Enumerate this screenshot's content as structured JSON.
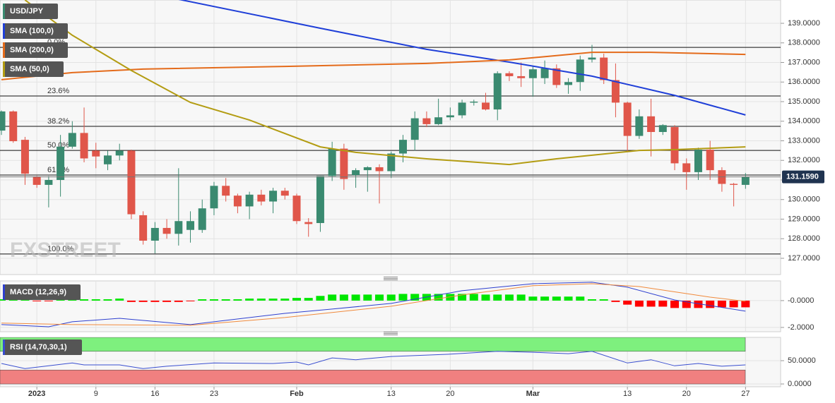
{
  "chart_data": [
    {
      "type": "candlestick",
      "title": "USD/JPY",
      "up_color": "#3a8a70",
      "down_color": "#e0564a",
      "open": [
        133.52,
        134.5,
        133.05,
        131.18,
        130.75,
        131.0,
        132.7,
        133.4,
        132.5,
        131.8,
        132.25,
        132.5,
        129.2,
        127.9,
        128.55,
        128.25,
        128.45,
        128.45,
        129.55,
        130.7,
        130.2,
        129.65,
        130.25,
        129.9,
        130.45,
        130.2,
        128.85,
        128.8,
        131.2,
        132.6,
        131.25,
        131.5,
        131.65,
        131.45,
        132.35,
        133.05,
        134.15,
        133.85,
        134.2,
        134.3,
        134.95,
        134.95,
        134.6,
        136.45,
        136.3,
        136.2,
        136.2,
        136.7,
        135.85,
        136.0,
        137.15,
        137.25,
        136.1,
        134.95,
        133.25,
        134.25,
        133.45,
        133.7,
        131.85,
        131.4,
        132.55,
        131.5,
        130.8,
        130.75
      ],
      "high": [
        134.55,
        134.55,
        133.2,
        131.2,
        131.2,
        133.3,
        134.0,
        134.7,
        132.9,
        132.5,
        132.85,
        132.55,
        129.4,
        128.85,
        129.0,
        131.6,
        129.4,
        130.0,
        130.9,
        131.1,
        130.3,
        130.4,
        130.5,
        130.6,
        130.6,
        130.3,
        129.05,
        131.2,
        132.95,
        132.85,
        131.6,
        131.7,
        131.8,
        132.45,
        133.3,
        134.5,
        134.5,
        135.15,
        134.7,
        135.1,
        135.1,
        135.45,
        136.55,
        136.55,
        137.0,
        136.8,
        137.1,
        136.9,
        136.2,
        137.35,
        137.9,
        137.45,
        136.95,
        135.0,
        134.6,
        135.15,
        133.85,
        133.8,
        132.1,
        132.65,
        133.0,
        131.65,
        130.85,
        131.35
      ],
      "low": [
        133.3,
        132.9,
        130.75,
        130.6,
        129.6,
        130.15,
        132.6,
        131.9,
        131.6,
        131.5,
        132.0,
        129.0,
        127.7,
        127.25,
        128.0,
        127.65,
        127.8,
        128.3,
        129.2,
        129.9,
        129.3,
        129.0,
        129.7,
        129.3,
        130.0,
        128.75,
        128.1,
        128.35,
        130.95,
        130.5,
        130.6,
        130.4,
        129.8,
        131.1,
        131.9,
        132.5,
        133.7,
        133.8,
        134.05,
        134.15,
        134.8,
        134.55,
        134.05,
        136.05,
        135.75,
        135.25,
        135.9,
        135.7,
        135.4,
        135.55,
        137.0,
        135.9,
        134.2,
        132.45,
        133.1,
        132.2,
        133.3,
        131.5,
        130.5,
        131.0,
        131.0,
        130.4,
        129.65,
        130.55
      ],
      "close": [
        134.5,
        132.98,
        131.32,
        130.75,
        131.0,
        132.7,
        133.4,
        132.1,
        132.2,
        132.25,
        132.5,
        129.25,
        127.9,
        128.55,
        128.25,
        128.9,
        128.9,
        129.55,
        130.7,
        130.2,
        129.65,
        130.25,
        129.9,
        130.45,
        130.2,
        128.9,
        128.75,
        131.2,
        132.6,
        131.05,
        131.5,
        131.65,
        131.45,
        132.35,
        133.05,
        134.15,
        133.85,
        134.2,
        134.3,
        134.95,
        135.0,
        134.6,
        136.45,
        136.3,
        136.2,
        136.65,
        136.7,
        135.85,
        136.0,
        137.15,
        137.25,
        136.1,
        134.95,
        133.25,
        134.25,
        133.45,
        133.8,
        131.85,
        131.4,
        132.55,
        131.5,
        130.8,
        130.75,
        131.16
      ],
      "series": [
        {
          "name": "SMA (100,0)",
          "color": "#1f3fd8",
          "x": [
            14,
            27,
            36,
            43,
            50,
            57,
            63
          ],
          "values": [
            140.35,
            138.75,
            137.67,
            137.02,
            136.3,
            135.32,
            134.32
          ]
        },
        {
          "name": "SMA (200,0)",
          "color": "#e46b1b",
          "x": [
            0,
            6,
            12,
            24,
            36,
            43,
            50,
            55,
            63
          ],
          "values": [
            136.12,
            136.48,
            136.66,
            136.8,
            136.95,
            137.13,
            137.52,
            137.52,
            137.41
          ]
        },
        {
          "name": "SMA (50,0)",
          "color": "#b39c12",
          "x": [
            2,
            6,
            11,
            16,
            21,
            27,
            30,
            36,
            43,
            47,
            54,
            57,
            63
          ],
          "values": [
            140.19,
            138.39,
            136.59,
            134.96,
            134.06,
            132.69,
            132.41,
            132.08,
            131.79,
            132.08,
            132.51,
            132.55,
            132.69
          ]
        }
      ],
      "levels": [
        {
          "label": "0.0%",
          "value": 137.77
        },
        {
          "label": "23.6%",
          "value": 135.29
        },
        {
          "label": "38.2%",
          "value": 133.74
        },
        {
          "label": "50.0%",
          "value": 132.51
        },
        {
          "label": "61.8%",
          "value": 131.25
        },
        {
          "label": "100.0%",
          "value": 127.22
        }
      ],
      "last_price": {
        "value": 131.159,
        "label": "131.1590"
      },
      "watermark": "FXSTREET",
      "xlim": [
        -0.12,
        65.97
      ],
      "ylim": [
        126.17,
        140.19
      ],
      "yticks": [
        {
          "value": 127,
          "label": "127.0000"
        },
        {
          "value": 128,
          "label": "128.0000"
        },
        {
          "value": 129,
          "label": "129.0000"
        },
        {
          "value": 130,
          "label": "130.0000"
        },
        {
          "value": 131,
          "label": "131.0000"
        },
        {
          "value": 132,
          "label": "132.0000"
        },
        {
          "value": 133,
          "label": "133.0000"
        },
        {
          "value": 134,
          "label": "134.0000"
        },
        {
          "value": 135,
          "label": "135.0000"
        },
        {
          "value": 136,
          "label": "136.0000"
        },
        {
          "value": 137,
          "label": "137.0000"
        },
        {
          "value": 138,
          "label": "138.0000"
        },
        {
          "value": 139,
          "label": "139.0000"
        }
      ],
      "grid": true
    },
    {
      "type": "macd",
      "title": "MACD (12,26,9)",
      "up_color": "#00e600",
      "down_color": "#ff0000",
      "histogram": [
        0.1,
        0.1,
        0.1,
        -0.05,
        -0.05,
        0.1,
        0.1,
        0.1,
        0.1,
        0.1,
        0.15,
        -0.1,
        -0.1,
        -0.1,
        -0.1,
        -0.1,
        -0.05,
        0.1,
        0.1,
        0.1,
        0.1,
        0.15,
        0.15,
        0.15,
        0.15,
        0.2,
        0.2,
        0.35,
        0.45,
        0.45,
        0.45,
        0.45,
        0.45,
        0.45,
        0.5,
        0.5,
        0.5,
        0.5,
        0.5,
        0.5,
        0.5,
        0.45,
        0.45,
        0.45,
        0.45,
        0.3,
        0.3,
        0.3,
        0.3,
        0.3,
        0.1,
        0.1,
        -0.1,
        -0.3,
        -0.45,
        -0.45,
        -0.45,
        -0.55,
        -0.55,
        -0.55,
        -0.55,
        -0.5,
        -0.5,
        -0.5
      ],
      "series": [
        {
          "color": "#2e3fcf",
          "x": [
            0,
            4,
            6,
            10,
            16,
            24,
            28,
            33,
            39,
            45,
            50,
            53,
            57,
            63
          ],
          "values": [
            -1.79,
            -1.95,
            -1.58,
            -1.32,
            -1.79,
            -0.95,
            -0.63,
            -0.21,
            0.74,
            1.26,
            1.37,
            1.0,
            0.05,
            -0.79
          ]
        },
        {
          "color": "#f08a3c",
          "x": [
            0,
            6,
            16,
            24,
            33,
            39,
            45,
            50,
            54,
            60,
            63
          ],
          "values": [
            -1.68,
            -1.79,
            -1.84,
            -1.26,
            -0.42,
            0.42,
            1.11,
            1.26,
            1.05,
            0.26,
            -0.05
          ]
        }
      ],
      "xlim": [
        -0.12,
        65.97
      ],
      "ylim": [
        -2.32,
        1.47
      ],
      "yticks": [
        {
          "value": 0,
          "label": "-0.0000"
        },
        {
          "value": -2,
          "label": "-2.0000"
        }
      ],
      "grid": true
    },
    {
      "type": "rsi",
      "title": "RSI (14,70,30,1)",
      "bands": [
        {
          "from": 70,
          "to": 100,
          "color": "#7ef07e"
        },
        {
          "from": 0,
          "to": 30,
          "color": "#f08080"
        }
      ],
      "series": [
        {
          "color": "#3a4fd0",
          "x": [
            0,
            2,
            4,
            6,
            7,
            10,
            12,
            14,
            18,
            23,
            25,
            26,
            28,
            30,
            33,
            38,
            42,
            45,
            48,
            50,
            53,
            55,
            57,
            59,
            61,
            63
          ],
          "values": [
            44,
            33,
            39,
            45,
            41,
            41,
            33,
            38,
            45,
            44,
            47,
            41,
            56,
            52,
            59,
            64,
            70,
            68,
            65,
            70,
            45,
            52,
            39,
            44,
            38,
            41
          ]
        }
      ],
      "xlim": [
        -0.12,
        65.97
      ],
      "ylim": [
        -6,
        100
      ],
      "yticks": [
        {
          "value": 0,
          "label": "0.0000"
        },
        {
          "value": 50,
          "label": "50.0000"
        }
      ],
      "xticks": [
        {
          "value": 3,
          "label": "2023"
        },
        {
          "value": 8,
          "label": "9"
        },
        {
          "value": 13,
          "label": "16"
        },
        {
          "value": 18,
          "label": "23"
        },
        {
          "value": 25,
          "label": "Feb"
        },
        {
          "value": 33,
          "label": "13"
        },
        {
          "value": 38,
          "label": "20"
        },
        {
          "value": 45,
          "label": "Mar"
        },
        {
          "value": 53,
          "label": "13"
        },
        {
          "value": 58,
          "label": "20"
        },
        {
          "value": 63,
          "label": "27"
        }
      ],
      "grid": true
    }
  ]
}
